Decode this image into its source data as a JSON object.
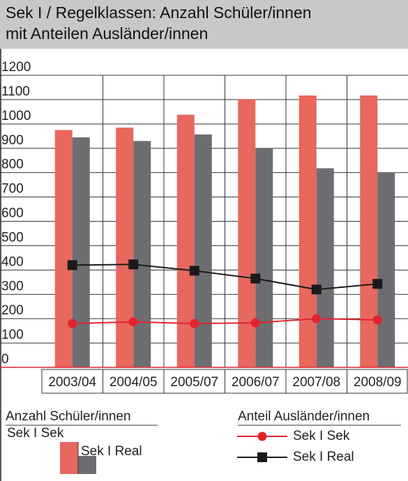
{
  "chart_data": {
    "type": "bar",
    "title": [
      "Sek I / Regelklassen: Anzahl Schüler/innen",
      "mit Anteilen Ausländer/innen"
    ],
    "categories": [
      "2003/04",
      "2004/05",
      "2005/07",
      "2006/07",
      "2007/08",
      "2008/09"
    ],
    "series": [
      {
        "name": "Sek I Sek",
        "type": "bar",
        "color": "#e8675e",
        "values": [
          975,
          985,
          1038,
          1102,
          1117,
          1117
        ]
      },
      {
        "name": "Sek I Real",
        "type": "bar",
        "color": "#6d6e71",
        "values": [
          945,
          930,
          957,
          900,
          818,
          802
        ]
      },
      {
        "name": "Sek I Sek",
        "type": "line",
        "color": "#e2232f",
        "values": [
          180,
          187,
          180,
          183,
          200,
          195
        ]
      },
      {
        "name": "Sek I Real",
        "type": "line",
        "color": "#1a1a1a",
        "values": [
          420,
          423,
          397,
          365,
          320,
          343
        ]
      }
    ],
    "legend_titles": [
      "Anzahl Schüler/innen",
      "Anteil Ausländer/innen"
    ],
    "ylim": [
      0,
      1200
    ],
    "yticks": [
      0,
      100,
      200,
      300,
      400,
      500,
      600,
      700,
      800,
      900,
      1000,
      1100,
      1200
    ],
    "grid": true
  }
}
